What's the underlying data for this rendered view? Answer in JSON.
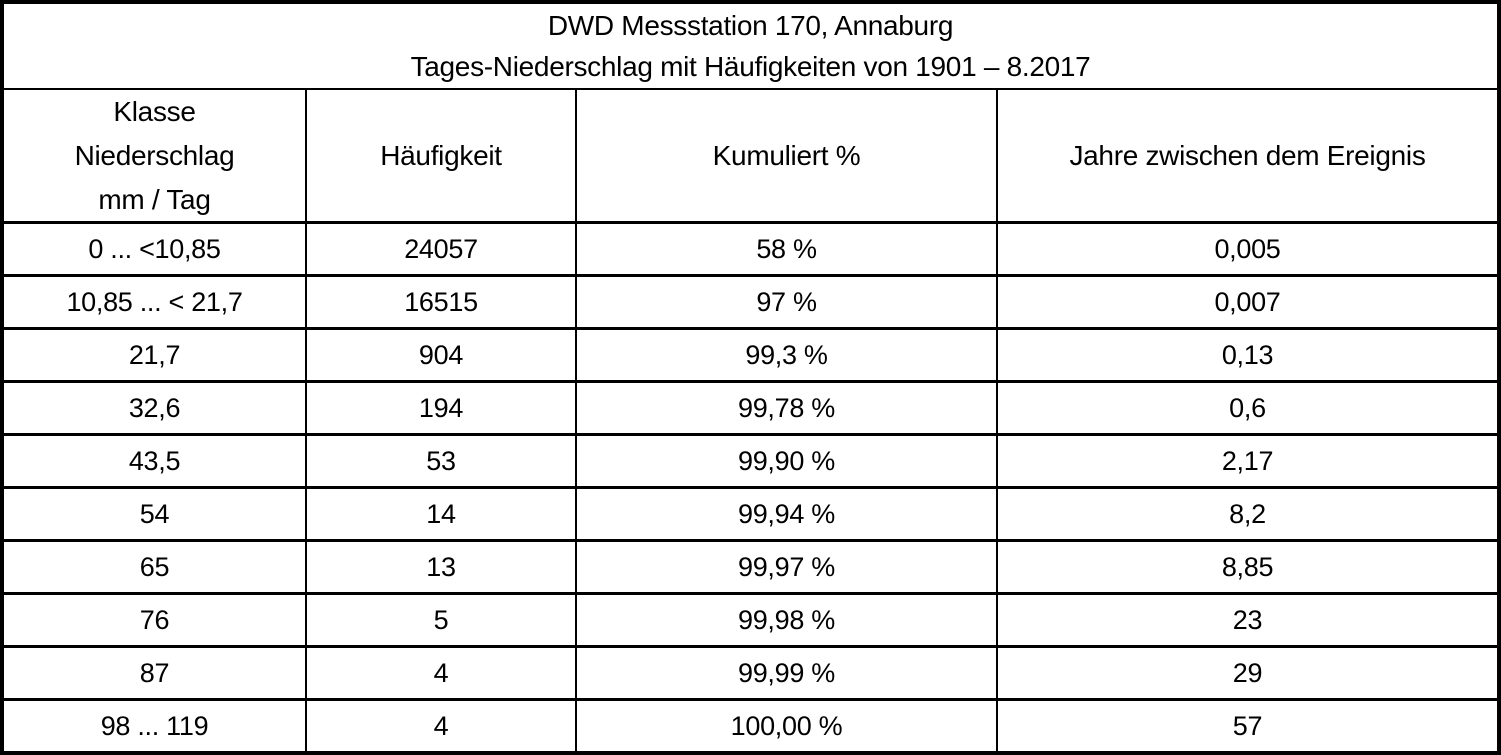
{
  "chart_data": {
    "type": "table",
    "title": "DWD Messstation 170, Annaburg",
    "subtitle": "Tages-Niederschlag mit Häufigkeiten von 1901 – 8.2017",
    "columns": [
      "Klasse Niederschlag mm / Tag",
      "Häufigkeit",
      "Kumuliert %",
      "Jahre zwischen dem Ereignis"
    ],
    "rows": [
      [
        "0 ... <10,85",
        "24057",
        "58 %",
        "0,005"
      ],
      [
        "10,85 ... < 21,7",
        "16515",
        "97 %",
        "0,007"
      ],
      [
        "21,7",
        "904",
        "99,3 %",
        "0,13"
      ],
      [
        "32,6",
        "194",
        "99,78 %",
        "0,6"
      ],
      [
        "43,5",
        "53",
        "99,90 %",
        "2,17"
      ],
      [
        "54",
        "14",
        "99,94 %",
        "8,2"
      ],
      [
        "65",
        "13",
        "99,97 %",
        "8,85"
      ],
      [
        "76",
        "5",
        "99,98 %",
        "23"
      ],
      [
        "87",
        "4",
        "99,99 %",
        "29"
      ],
      [
        "98 ... 119",
        "4",
        "100,00 %",
        "57"
      ]
    ]
  },
  "header": {
    "col1_line1": "Klasse",
    "col1_line2": "Niederschlag",
    "col1_line3": "mm / Tag",
    "col2": "Häufigkeit",
    "col3": "Kumuliert %",
    "col4": "Jahre zwischen dem Ereignis"
  },
  "colors": {
    "border": "#000000",
    "background": "#ffffff",
    "text": "#000000"
  }
}
